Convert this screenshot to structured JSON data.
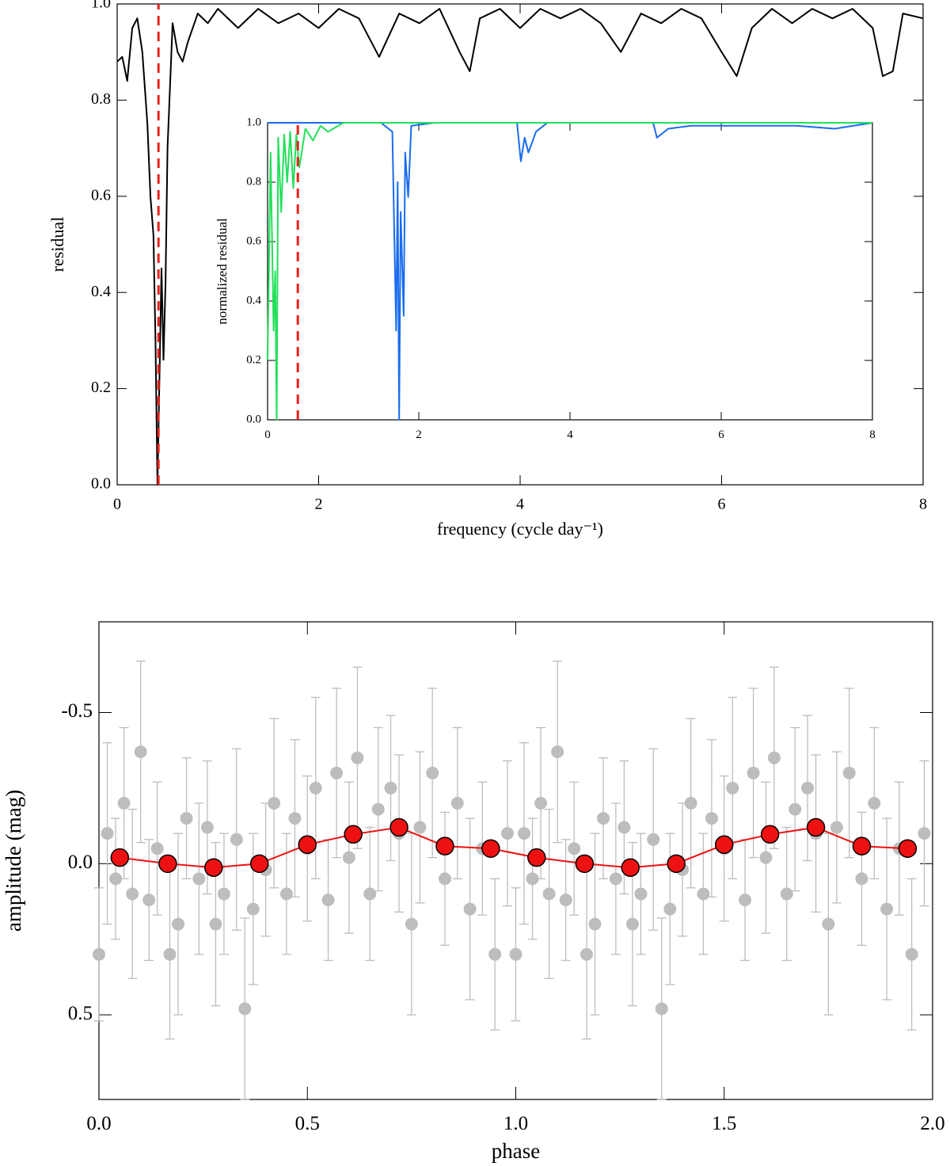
{
  "chart_data": [
    {
      "type": "line",
      "xlabel": "frequency (cycle day⁻¹)",
      "ylabel": "residual",
      "xlim": [
        0,
        8
      ],
      "ylim": [
        0,
        1
      ],
      "xticks": [
        0,
        2,
        4,
        6,
        8
      ],
      "yticks": [
        {
          "value": 0,
          "label": "0.0"
        },
        0.2,
        0.4,
        0.6,
        0.8,
        {
          "value": 1,
          "label": "1.0"
        }
      ],
      "vline": 0.41,
      "vline_color": "#e8221c",
      "series": [
        {
          "color": "#000000",
          "x": [
            0,
            0.05,
            0.1,
            0.15,
            0.2,
            0.25,
            0.3,
            0.33,
            0.36,
            0.38,
            0.4,
            0.42,
            0.44,
            0.46,
            0.48,
            0.5,
            0.55,
            0.6,
            0.65,
            0.7,
            0.8,
            0.9,
            1.0,
            1.2,
            1.4,
            1.6,
            1.8,
            2.0,
            2.2,
            2.4,
            2.6,
            2.8,
            3.0,
            3.2,
            3.4,
            3.5,
            3.6,
            3.8,
            4.0,
            4.2,
            4.4,
            4.6,
            4.8,
            5.0,
            5.2,
            5.4,
            5.6,
            5.8,
            6.0,
            6.15,
            6.3,
            6.5,
            6.7,
            6.9,
            7.1,
            7.3,
            7.5,
            7.6,
            7.7,
            7.8,
            8.0
          ],
          "values": [
            0.88,
            0.89,
            0.84,
            0.95,
            0.97,
            0.9,
            0.75,
            0.6,
            0.52,
            0.3,
            0.0,
            0.22,
            0.45,
            0.26,
            0.42,
            0.7,
            0.96,
            0.9,
            0.88,
            0.92,
            0.98,
            0.96,
            0.99,
            0.95,
            0.99,
            0.96,
            0.98,
            0.95,
            0.99,
            0.97,
            0.89,
            0.98,
            0.96,
            0.99,
            0.9,
            0.86,
            0.97,
            0.99,
            0.95,
            0.99,
            0.97,
            0.99,
            0.96,
            0.9,
            0.98,
            0.96,
            0.99,
            0.97,
            0.9,
            0.85,
            0.95,
            0.99,
            0.96,
            0.99,
            0.97,
            0.99,
            0.95,
            0.85,
            0.86,
            0.98,
            0.97
          ]
        }
      ]
    },
    {
      "type": "line",
      "ylabel": "normalized residual",
      "xlim": [
        0,
        8
      ],
      "ylim": [
        0,
        1
      ],
      "xticks": [
        0,
        2,
        4,
        6,
        8
      ],
      "yticks": [
        {
          "value": 0,
          "label": "0.0"
        },
        0.2,
        0.4,
        0.6,
        0.8,
        {
          "value": 1,
          "label": "1.0"
        }
      ],
      "vline": 0.4,
      "vline_color": "#e8221c",
      "series": [
        {
          "color": "#1a6cf0",
          "x": [
            0,
            1.5,
            1.65,
            1.7,
            1.72,
            1.74,
            1.76,
            1.8,
            1.82,
            1.86,
            1.9,
            2.2,
            3.3,
            3.35,
            3.4,
            3.45,
            3.55,
            3.7,
            5.1,
            5.15,
            5.3,
            5.6,
            7.0,
            7.5,
            8.0
          ],
          "values": [
            1.0,
            1.0,
            0.97,
            0.3,
            0.8,
            0.0,
            0.7,
            0.35,
            0.9,
            0.75,
            0.99,
            1.0,
            1.0,
            0.87,
            0.95,
            0.9,
            0.97,
            1.0,
            1.0,
            0.95,
            0.98,
            0.99,
            0.99,
            0.98,
            1.0
          ]
        },
        {
          "color": "#22e05a",
          "x": [
            0,
            0.04,
            0.08,
            0.1,
            0.12,
            0.14,
            0.18,
            0.22,
            0.26,
            0.3,
            0.34,
            0.38,
            0.42,
            0.5,
            0.6,
            0.7,
            0.8,
            1.0,
            2.0,
            4.0,
            6.0,
            8.0
          ],
          "values": [
            0.2,
            0.9,
            0.3,
            0.5,
            0.0,
            0.95,
            0.7,
            0.96,
            0.8,
            0.97,
            0.78,
            0.96,
            0.85,
            0.98,
            0.94,
            0.99,
            0.97,
            1.0,
            1.0,
            1.0,
            1.0,
            1.0
          ]
        }
      ]
    },
    {
      "type": "scatter",
      "xlabel": "phase",
      "ylabel": "amplitude (mag)",
      "xlim": [
        0,
        2
      ],
      "ylim": [
        0.78,
        -0.8
      ],
      "xticks": [
        {
          "value": 0,
          "label": "0.0"
        },
        0.5,
        {
          "value": 1,
          "label": "1.0"
        },
        1.5,
        {
          "value": 2,
          "label": "2.0"
        }
      ],
      "yticks": [
        -0.5,
        {
          "value": 0,
          "label": "0.0"
        },
        0.5
      ],
      "series": [
        {
          "color": "#bdbdbd",
          "x": [
            0.0,
            0.02,
            0.04,
            0.06,
            0.08,
            0.1,
            0.12,
            0.14,
            0.17,
            0.19,
            0.21,
            0.24,
            0.26,
            0.28,
            0.3,
            0.33,
            0.35,
            0.37,
            0.4,
            0.42,
            0.45,
            0.47,
            0.5,
            0.52,
            0.55,
            0.57,
            0.6,
            0.62,
            0.65,
            0.67,
            0.7,
            0.72,
            0.75,
            0.77,
            0.8,
            0.83,
            0.86,
            0.89,
            0.92,
            0.95,
            0.98,
            1.0,
            1.02,
            1.04,
            1.06,
            1.08,
            1.1,
            1.12,
            1.14,
            1.17,
            1.19,
            1.21,
            1.24,
            1.26,
            1.28,
            1.3,
            1.33,
            1.35,
            1.37,
            1.4,
            1.42,
            1.45,
            1.47,
            1.5,
            1.52,
            1.55,
            1.57,
            1.6,
            1.62,
            1.65,
            1.67,
            1.7,
            1.72,
            1.75,
            1.77,
            1.8,
            1.83,
            1.86,
            1.89,
            1.92,
            1.95,
            1.98
          ],
          "values": [
            0.3,
            -0.1,
            0.05,
            -0.2,
            0.1,
            -0.37,
            0.12,
            -0.05,
            0.3,
            0.2,
            -0.15,
            0.05,
            -0.12,
            0.2,
            0.1,
            -0.08,
            0.48,
            0.15,
            0.02,
            -0.2,
            0.1,
            -0.15,
            -0.05,
            -0.25,
            0.12,
            -0.3,
            -0.02,
            -0.35,
            0.1,
            -0.18,
            -0.25,
            -0.1,
            0.2,
            -0.12,
            -0.3,
            0.05,
            -0.2,
            0.15,
            -0.05,
            0.3,
            -0.1,
            0.3,
            -0.1,
            0.05,
            -0.2,
            0.1,
            -0.37,
            0.12,
            -0.05,
            0.3,
            0.2,
            -0.15,
            0.05,
            -0.12,
            0.2,
            0.1,
            -0.08,
            0.48,
            0.15,
            0.02,
            -0.2,
            0.1,
            -0.15,
            -0.05,
            -0.25,
            0.12,
            -0.3,
            -0.02,
            -0.35,
            0.1,
            -0.18,
            -0.25,
            -0.1,
            0.2,
            -0.12,
            -0.3,
            0.05,
            -0.2,
            0.15,
            -0.05,
            0.3,
            -0.1
          ],
          "errors": [
            0.22,
            0.3,
            0.2,
            0.25,
            0.28,
            0.3,
            0.2,
            0.22,
            0.28,
            0.3,
            0.2,
            0.25,
            0.22,
            0.27,
            0.2,
            0.3,
            0.3,
            0.25,
            0.22,
            0.28,
            0.2,
            0.26,
            0.24,
            0.3,
            0.2,
            0.28,
            0.25,
            0.3,
            0.22,
            0.27,
            0.24,
            0.26,
            0.3,
            0.25,
            0.28,
            0.22,
            0.25,
            0.3,
            0.22,
            0.25,
            0.24,
            0.22,
            0.3,
            0.2,
            0.25,
            0.28,
            0.3,
            0.2,
            0.22,
            0.28,
            0.3,
            0.2,
            0.25,
            0.22,
            0.27,
            0.2,
            0.3,
            0.3,
            0.25,
            0.22,
            0.28,
            0.2,
            0.26,
            0.24,
            0.3,
            0.2,
            0.28,
            0.25,
            0.3,
            0.22,
            0.27,
            0.24,
            0.26,
            0.3,
            0.25,
            0.28,
            0.22,
            0.25,
            0.3,
            0.22,
            0.25,
            0.24
          ]
        },
        {
          "color": "#ee1111",
          "connect": true,
          "x": [
            0.05,
            0.165,
            0.275,
            0.385,
            0.5,
            0.61,
            0.72,
            0.83,
            0.94,
            1.05,
            1.165,
            1.275,
            1.385,
            1.5,
            1.61,
            1.72,
            1.83,
            1.94
          ],
          "values": [
            -0.02,
            0.0,
            0.013,
            0.0,
            -0.063,
            -0.097,
            -0.12,
            -0.058,
            -0.05,
            -0.02,
            0.0,
            0.013,
            0.0,
            -0.063,
            -0.097,
            -0.12,
            -0.058,
            -0.05
          ],
          "errors": [
            0.02,
            0.02,
            0.02,
            0.02,
            0.02,
            0.02,
            0.02,
            0.02,
            0.02,
            0.02,
            0.02,
            0.02,
            0.02,
            0.02,
            0.02,
            0.02,
            0.02,
            0.02
          ]
        }
      ]
    }
  ]
}
